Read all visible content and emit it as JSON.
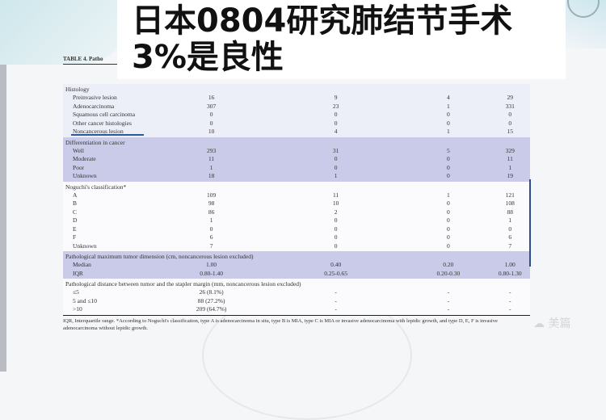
{
  "title": {
    "line1": "日本0804研究肺结节手术",
    "line2": "3%是良性"
  },
  "table_caption": "TABLE 4. Patho",
  "sections": [
    {
      "header": "Histology",
      "style": "light",
      "rows": [
        [
          "Preinvasive lesion",
          "16",
          "9",
          "4",
          "29"
        ],
        [
          "Adenocarcinoma",
          "307",
          "23",
          "1",
          "331"
        ],
        [
          "Squamous cell carcinoma",
          "0",
          "0",
          "0",
          "0"
        ],
        [
          "Other cancer histologies",
          "0",
          "0",
          "0",
          "0"
        ],
        [
          "Noncancerous lesion",
          "10",
          "4",
          "1",
          "15"
        ]
      ]
    },
    {
      "header": "Differentiation in cancer",
      "style": "dark",
      "rows": [
        [
          "Well",
          "293",
          "31",
          "5",
          "329"
        ],
        [
          "Moderate",
          "11",
          "0",
          "0",
          "11"
        ],
        [
          "Poor",
          "1",
          "0",
          "0",
          "1"
        ],
        [
          "Unknown",
          "18",
          "1",
          "0",
          "19"
        ]
      ]
    },
    {
      "header": "Noguchi's classification*",
      "style": "white",
      "rows": [
        [
          "A",
          "109",
          "11",
          "1",
          "121"
        ],
        [
          "B",
          "98",
          "10",
          "0",
          "108"
        ],
        [
          "C",
          "86",
          "2",
          "0",
          "88"
        ],
        [
          "D",
          "1",
          "0",
          "0",
          "1"
        ],
        [
          "E",
          "0",
          "0",
          "0",
          "0"
        ],
        [
          "F",
          "6",
          "0",
          "0",
          "6"
        ],
        [
          "Unknown",
          "7",
          "0",
          "0",
          "7"
        ]
      ]
    },
    {
      "header": "Pathological maximum tumor dimension (cm, noncancerous lesion excluded)",
      "style": "dark",
      "rows": [
        [
          "Median",
          "1.00",
          "0.40",
          "0.20",
          "1.00"
        ],
        [
          "IQR",
          "0.80-1.40",
          "0.25-0.65",
          "0.20-0.30",
          "0.80-1.30"
        ]
      ]
    },
    {
      "header": "Pathological distance between tumor and the stapler margin (mm, noncancerous lesion excluded)",
      "style": "white",
      "rows": [
        [
          "≤5",
          "26 (8.1%)",
          "-",
          "-",
          "-"
        ],
        [
          "5 and ≤10",
          "88 (27.2%)",
          "-",
          "-",
          "-"
        ],
        [
          ">10",
          "209 (64.7%)",
          "-",
          "-",
          "-"
        ]
      ]
    }
  ],
  "footnote": "IQR, Interquartile range. *According to Noguchi's classification, type A is adenocarcinoma in situ, type B is MIA, type C is MIA or invasive adenocarcinoma with lepidic growth, and type D, E, F is invasive adenocarcinoma without lepidic growth.",
  "watermark": "美篇"
}
